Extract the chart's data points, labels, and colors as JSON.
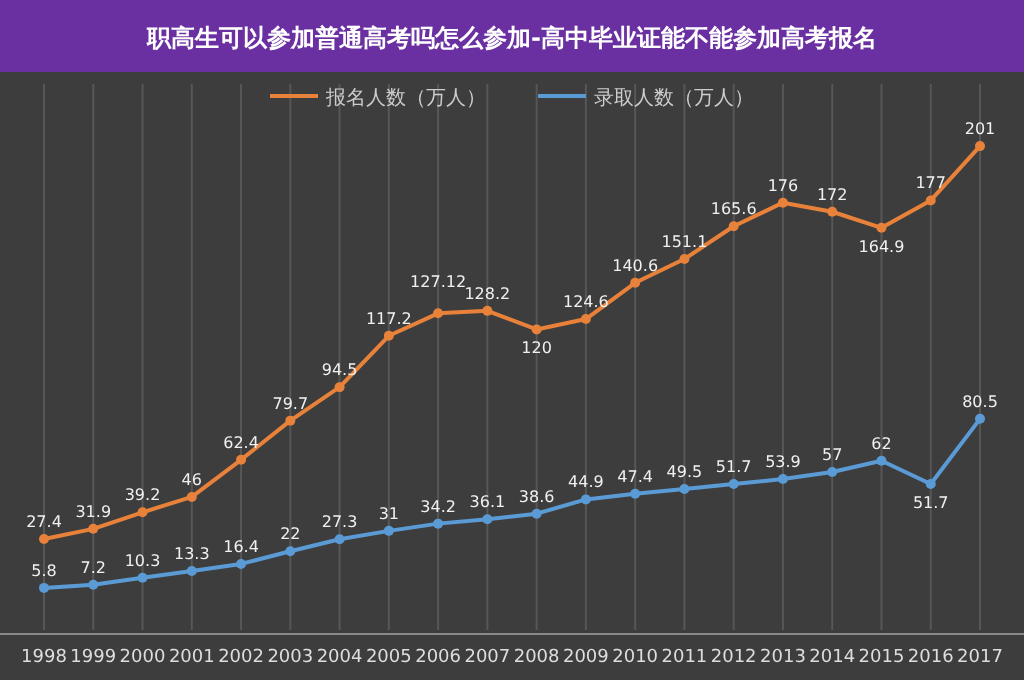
{
  "chart_data": {
    "type": "line",
    "title": "职高生可以参加普通高考吗怎么参加-高中毕业证能不能参加高考报名",
    "categories": [
      "1998",
      "1999",
      "2000",
      "2001",
      "2002",
      "2003",
      "2004",
      "2005",
      "2006",
      "2007",
      "2008",
      "2009",
      "2010",
      "2011",
      "2012",
      "2013",
      "2014",
      "2015",
      "2016",
      "2017"
    ],
    "series": [
      {
        "name": "报名人数（万人）",
        "color": "#e8813a",
        "values": [
          27.4,
          31.9,
          39.2,
          46,
          62.4,
          79.7,
          94.5,
          117.2,
          127.12,
          128.2,
          120,
          124.6,
          140.6,
          151.1,
          165.6,
          176,
          172,
          164.9,
          177,
          201
        ]
      },
      {
        "name": "录取人数（万人）",
        "color": "#5b9bd5",
        "values": [
          5.8,
          7.2,
          10.3,
          13.3,
          16.4,
          22,
          27.3,
          31,
          34.2,
          36.1,
          38.6,
          44.9,
          47.4,
          49.5,
          51.7,
          53.9,
          57,
          62,
          51.7,
          80.5
        ]
      }
    ],
    "tick_labels": "x",
    "grid": "x",
    "legend": "top",
    "data_labels": true,
    "marker": "circle",
    "line_style": "solid"
  }
}
